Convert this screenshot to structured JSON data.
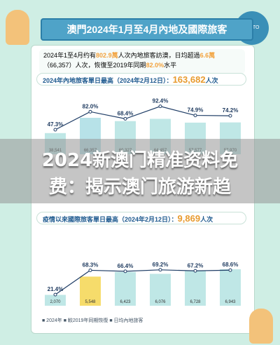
{
  "header": {
    "title": "澳門2024年1月至4月內地及國際旅客"
  },
  "summary": {
    "line1_pre": "2024年1至4月约有",
    "line1_num": "802.9萬",
    "line1_mid": "人次內地旅客訪澳，日均超過",
    "line1_avg": "6.6萬",
    "line2_pre": "（66,357）人次，恢復至2019年同期",
    "line2_pct": "82.0%",
    "line2_post": "水平"
  },
  "section1": {
    "title": "2024年內地旅客單日最高（2024年2月12日）：",
    "value": "163,682",
    "unit": "人次"
  },
  "section2": {
    "title": "疫情以來國際旅客單日最高（2024年2月12日）：",
    "value": "9,869",
    "unit": "人次"
  },
  "chart1": {
    "percents": [
      "47.3%",
      "82.0%",
      "68.4%",
      "92.4%",
      "74.9%",
      "74.2%"
    ],
    "bar_labels": [
      "38,541",
      "66,357",
      "60,327",
      "64,457",
      "57,577",
      "57,970"
    ]
  },
  "chart2": {
    "percents": [
      "21.4%",
      "68.3%",
      "66.4%",
      "69.2%",
      "67.2%",
      "68.6%"
    ],
    "bar_labels": [
      "2,070",
      "5,548",
      "6,423",
      "6,076",
      "6,728",
      "6,943"
    ]
  },
  "banner": {
    "line1": "2024新澳门精准资料免",
    "line2": "费：揭示澳门旅游新趋"
  },
  "legend": {
    "text": "■ 2024年  ■ 較2019年同期恢復  ■ 日均內地旅客"
  },
  "badge": {
    "text": "MGTO"
  },
  "chart_data": [
    {
      "type": "bar",
      "series": [
        {
          "values": [
            38541,
            66357,
            60327,
            64457,
            57577,
            57970
          ]
        },
        {
          "values": [
            47.3,
            82.0,
            68.4,
            92.4,
            74.9,
            74.2
          ]
        }
      ]
    },
    {
      "type": "bar",
      "series": [
        {
          "values": [
            2070,
            5548,
            6423,
            6076,
            6728,
            6943
          ]
        },
        {
          "values": [
            21.4,
            68.3,
            66.4,
            69.2,
            67.2,
            68.6
          ]
        }
      ]
    }
  ]
}
